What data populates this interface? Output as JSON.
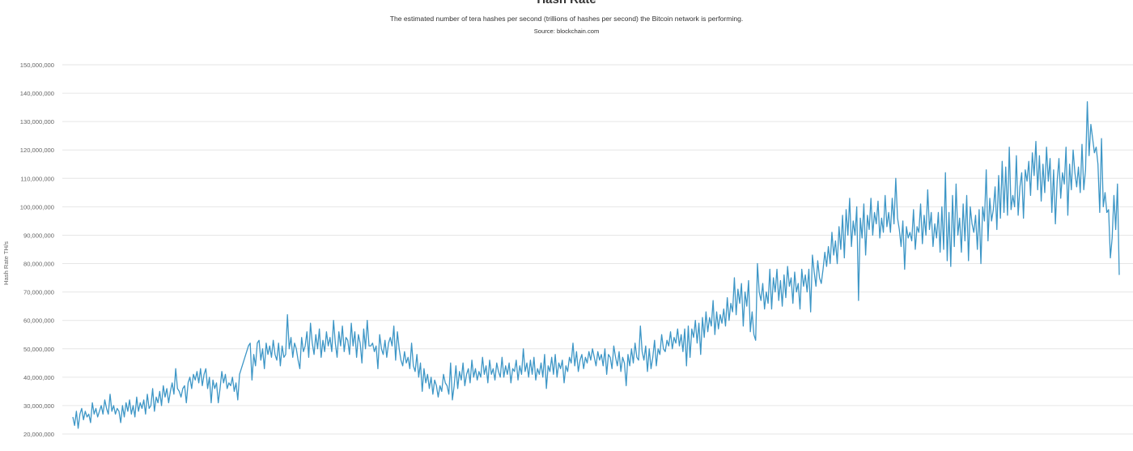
{
  "chart_data": {
    "type": "line",
    "title": "Hash Rate",
    "subtitle": "The estimated number of tera hashes per second (trillions of hashes per second) the Bitcoin network is performing.",
    "source": "Source: blockchain.com",
    "xlabel": "",
    "ylabel": "Hash Rate TH/s",
    "ylim": [
      20000000,
      150000000
    ],
    "yticks": [
      20000000,
      30000000,
      40000000,
      50000000,
      60000000,
      70000000,
      80000000,
      90000000,
      100000000,
      110000000,
      120000000,
      130000000,
      140000000,
      150000000
    ],
    "ytick_labels": [
      "20,000,000",
      "30,000,000",
      "40,000,000",
      "50,000,000",
      "60,000,000",
      "70,000,000",
      "80,000,000",
      "90,000,000",
      "100,000,000",
      "110,000,000",
      "120,000,000",
      "130,000,000",
      "140,000,000",
      "150,000,000"
    ],
    "grid": true,
    "legend": "none",
    "line_color": "#3d96c6",
    "series": [
      {
        "values": [
          26000000,
          23000000,
          28000000,
          22000000,
          27000000,
          29000000,
          25000000,
          28000000,
          26000000,
          27000000,
          24000000,
          31000000,
          27000000,
          29000000,
          26000000,
          28000000,
          30000000,
          27000000,
          32000000,
          29000000,
          27000000,
          34000000,
          28000000,
          30000000,
          27000000,
          29000000,
          28000000,
          24000000,
          30000000,
          26000000,
          31000000,
          28000000,
          32000000,
          27000000,
          30000000,
          26000000,
          33000000,
          28000000,
          31000000,
          29000000,
          32000000,
          27000000,
          34000000,
          29000000,
          30000000,
          36000000,
          28000000,
          33000000,
          31000000,
          35000000,
          30000000,
          37000000,
          33000000,
          36000000,
          31000000,
          35000000,
          38000000,
          34000000,
          43000000,
          36000000,
          35000000,
          33000000,
          36000000,
          37000000,
          31000000,
          38000000,
          40000000,
          36000000,
          41000000,
          39000000,
          42000000,
          38000000,
          43000000,
          37000000,
          41000000,
          43000000,
          36000000,
          40000000,
          31000000,
          39000000,
          36000000,
          38000000,
          31000000,
          36000000,
          42000000,
          38000000,
          41000000,
          36000000,
          38000000,
          37000000,
          40000000,
          35000000,
          38000000,
          32000000,
          41000000,
          43000000,
          45000000,
          47000000,
          49000000,
          51000000,
          52000000,
          39000000,
          48000000,
          44000000,
          52000000,
          53000000,
          46000000,
          50000000,
          43000000,
          52000000,
          48000000,
          51000000,
          47000000,
          53000000,
          48000000,
          46000000,
          52000000,
          44000000,
          51000000,
          47000000,
          48000000,
          62000000,
          50000000,
          54000000,
          47000000,
          52000000,
          50000000,
          46000000,
          43000000,
          54000000,
          49000000,
          51000000,
          56000000,
          47000000,
          59000000,
          52000000,
          48000000,
          55000000,
          50000000,
          57000000,
          47000000,
          53000000,
          49000000,
          56000000,
          51000000,
          54000000,
          49000000,
          60000000,
          52000000,
          47000000,
          56000000,
          51000000,
          58000000,
          49000000,
          54000000,
          53000000,
          48000000,
          59000000,
          51000000,
          56000000,
          47000000,
          55000000,
          52000000,
          45000000,
          57000000,
          50000000,
          60000000,
          51000000,
          51000000,
          52000000,
          49000000,
          51000000,
          43000000,
          55000000,
          50000000,
          48000000,
          53000000,
          47000000,
          52000000,
          54000000,
          51000000,
          58000000,
          46000000,
          56000000,
          50000000,
          46000000,
          44000000,
          49000000,
          45000000,
          47000000,
          43000000,
          52000000,
          44000000,
          42000000,
          48000000,
          40000000,
          45000000,
          35000000,
          43000000,
          38000000,
          41000000,
          36000000,
          40000000,
          34000000,
          39000000,
          37000000,
          33000000,
          37000000,
          35000000,
          41000000,
          38000000,
          37000000,
          34000000,
          45000000,
          32000000,
          37000000,
          44000000,
          36000000,
          42000000,
          39000000,
          45000000,
          37000000,
          41000000,
          43000000,
          38000000,
          46000000,
          40000000,
          43000000,
          39000000,
          42000000,
          40000000,
          47000000,
          41000000,
          44000000,
          38000000,
          46000000,
          41000000,
          43000000,
          39000000,
          45000000,
          42000000,
          40000000,
          47000000,
          40000000,
          44000000,
          41000000,
          45000000,
          38000000,
          43000000,
          42000000,
          46000000,
          39000000,
          44000000,
          41000000,
          50000000,
          42000000,
          45000000,
          40000000,
          46000000,
          41000000,
          47000000,
          39000000,
          43000000,
          41000000,
          45000000,
          40000000,
          48000000,
          36000000,
          44000000,
          42000000,
          47000000,
          41000000,
          48000000,
          40000000,
          45000000,
          43000000,
          46000000,
          38000000,
          44000000,
          42000000,
          47000000,
          45000000,
          52000000,
          44000000,
          49000000,
          42000000,
          46000000,
          48000000,
          43000000,
          47000000,
          45000000,
          49000000,
          46000000,
          50000000,
          47000000,
          44000000,
          49000000,
          46000000,
          48000000,
          44000000,
          50000000,
          41000000,
          48000000,
          47000000,
          43000000,
          51000000,
          47000000,
          44000000,
          49000000,
          42000000,
          47000000,
          45000000,
          37000000,
          48000000,
          44000000,
          50000000,
          45000000,
          52000000,
          47000000,
          46000000,
          58000000,
          49000000,
          46000000,
          51000000,
          42000000,
          50000000,
          43000000,
          47000000,
          53000000,
          44000000,
          50000000,
          48000000,
          55000000,
          50000000,
          49000000,
          53000000,
          51000000,
          56000000,
          50000000,
          54000000,
          52000000,
          57000000,
          51000000,
          55000000,
          49000000,
          57000000,
          44000000,
          58000000,
          47000000,
          57000000,
          54000000,
          60000000,
          52000000,
          59000000,
          48000000,
          61000000,
          54000000,
          63000000,
          56000000,
          61000000,
          58000000,
          67000000,
          55000000,
          63000000,
          57000000,
          62000000,
          59000000,
          64000000,
          58000000,
          68000000,
          60000000,
          66000000,
          63000000,
          75000000,
          62000000,
          71000000,
          66000000,
          73000000,
          58000000,
          70000000,
          65000000,
          74000000,
          56000000,
          63000000,
          55000000,
          53000000,
          80000000,
          70000000,
          67000000,
          73000000,
          64000000,
          70000000,
          66000000,
          78000000,
          64000000,
          75000000,
          70000000,
          78000000,
          67000000,
          74000000,
          65000000,
          76000000,
          68000000,
          79000000,
          72000000,
          75000000,
          66000000,
          77000000,
          70000000,
          73000000,
          64000000,
          78000000,
          72000000,
          76000000,
          70000000,
          78000000,
          63000000,
          83000000,
          77000000,
          72000000,
          81000000,
          75000000,
          73000000,
          78000000,
          84000000,
          79000000,
          86000000,
          80000000,
          91000000,
          83000000,
          88000000,
          80000000,
          93000000,
          85000000,
          97000000,
          82000000,
          99000000,
          90000000,
          103000000,
          86000000,
          95000000,
          90000000,
          100000000,
          67000000,
          96000000,
          89000000,
          101000000,
          83000000,
          97000000,
          92000000,
          103000000,
          90000000,
          98000000,
          94000000,
          102000000,
          89000000,
          96000000,
          91000000,
          104000000,
          93000000,
          98000000,
          91000000,
          103000000,
          94000000,
          110000000,
          96000000,
          92000000,
          86000000,
          95000000,
          78000000,
          93000000,
          89000000,
          91000000,
          88000000,
          99000000,
          85000000,
          93000000,
          91000000,
          101000000,
          87000000,
          97000000,
          90000000,
          106000000,
          92000000,
          98000000,
          86000000,
          94000000,
          89000000,
          98000000,
          84000000,
          100000000,
          85000000,
          112000000,
          81000000,
          98000000,
          79000000,
          104000000,
          86000000,
          108000000,
          90000000,
          96000000,
          84000000,
          101000000,
          88000000,
          104000000,
          81000000,
          100000000,
          94000000,
          91000000,
          97000000,
          85000000,
          99000000,
          80000000,
          100000000,
          95000000,
          113000000,
          88000000,
          103000000,
          95000000,
          99000000,
          107000000,
          92000000,
          111000000,
          96000000,
          116000000,
          98000000,
          114000000,
          97000000,
          121000000,
          99000000,
          104000000,
          100000000,
          118000000,
          97000000,
          107000000,
          112000000,
          96000000,
          113000000,
          109000000,
          116000000,
          104000000,
          119000000,
          111000000,
          123000000,
          106000000,
          118000000,
          102000000,
          115000000,
          105000000,
          121000000,
          109000000,
          117000000,
          98000000,
          113000000,
          94000000,
          109000000,
          117000000,
          103000000,
          112000000,
          108000000,
          121000000,
          97000000,
          115000000,
          106000000,
          120000000,
          112000000,
          107000000,
          114000000,
          105000000,
          122000000,
          106000000,
          113000000,
          137000000,
          118000000,
          129000000,
          124000000,
          119000000,
          121000000,
          115000000,
          98000000,
          124000000,
          100000000,
          105000000,
          98000000,
          99000000,
          82000000,
          89000000,
          104000000,
          92000000,
          108000000,
          76000000
        ]
      }
    ]
  }
}
